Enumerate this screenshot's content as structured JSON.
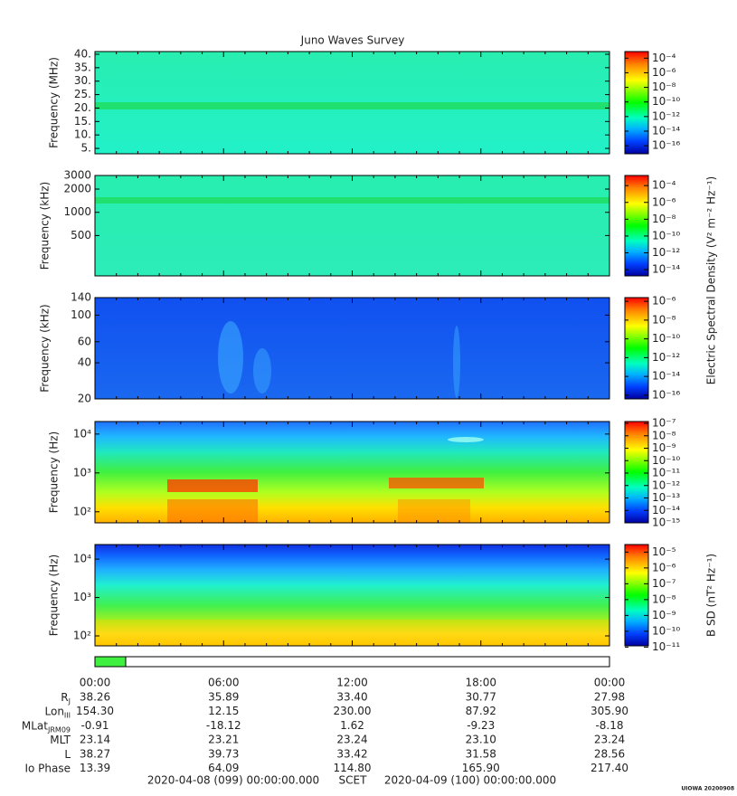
{
  "title": "Juno Waves Survey",
  "chart_data": [
    {
      "type": "spectrogram",
      "ylabel": "Frequency (MHz)",
      "log_y": false,
      "ylim": [
        3,
        41
      ],
      "yticks": [
        {
          "value": 5,
          "label": "5."
        },
        {
          "value": 10,
          "label": "10."
        },
        {
          "value": 15,
          "label": "15."
        },
        {
          "value": 20,
          "label": "20."
        },
        {
          "value": 25,
          "label": "25."
        },
        {
          "value": 30,
          "label": "30."
        },
        {
          "value": 35,
          "label": "35."
        },
        {
          "value": 40,
          "label": "40."
        }
      ],
      "colorbar": {
        "log": true,
        "clim": [
          8e-18,
          0.0008
        ],
        "ticks": [
          {
            "value": 0.0001,
            "label": "10⁻⁴"
          },
          {
            "value": 1e-06,
            "label": "10⁻⁶"
          },
          {
            "value": 1e-08,
            "label": "10⁻⁸"
          },
          {
            "value": 1e-10,
            "label": "10⁻¹⁰"
          },
          {
            "value": 1e-12,
            "label": "10⁻¹²"
          },
          {
            "value": 1e-14,
            "label": "10⁻¹⁴"
          },
          {
            "value": 1e-16,
            "label": "10⁻¹⁶"
          }
        ]
      }
    },
    {
      "type": "spectrogram",
      "ylabel": "Frequency (kHz)",
      "log_y": true,
      "ylim": [
        150,
        3000
      ],
      "yticks": [
        500,
        1000,
        2000,
        3000
      ],
      "colorbar": {
        "log": true,
        "clim": [
          1.8e-15,
          0.0016
        ],
        "ticks": [
          {
            "value": 0.0001,
            "label": "10⁻⁴"
          },
          {
            "value": 1e-06,
            "label": "10⁻⁶"
          },
          {
            "value": 1e-08,
            "label": "10⁻⁸"
          },
          {
            "value": 1e-10,
            "label": "10⁻¹⁰"
          },
          {
            "value": 1e-12,
            "label": "10⁻¹²"
          },
          {
            "value": 1e-14,
            "label": "10⁻¹⁴"
          }
        ]
      }
    },
    {
      "type": "spectrogram",
      "ylabel": "Frequency (kHz)",
      "log_y": true,
      "ylim": [
        20,
        140
      ],
      "yticks": [
        20,
        40,
        60,
        100,
        140
      ],
      "colorbar": {
        "log": true,
        "clim": [
          4e-17,
          2.5e-06
        ],
        "ticks": [
          {
            "value": 1e-06,
            "label": "10⁻⁶"
          },
          {
            "value": 1e-08,
            "label": "10⁻⁸"
          },
          {
            "value": 1e-10,
            "label": "10⁻¹⁰"
          },
          {
            "value": 1e-12,
            "label": "10⁻¹²"
          },
          {
            "value": 1e-14,
            "label": "10⁻¹⁴"
          },
          {
            "value": 1e-16,
            "label": "10⁻¹⁶"
          }
        ]
      }
    },
    {
      "type": "spectrogram",
      "ylabel": "Frequency (Hz)",
      "log_y": true,
      "ylim": [
        52,
        21000
      ],
      "yticks": [
        {
          "value": 100,
          "label": "10²"
        },
        {
          "value": 1000,
          "label": "10³"
        },
        {
          "value": 10000,
          "label": "10⁴"
        }
      ],
      "colorbar": {
        "log": true,
        "clim": [
          1e-15,
          1.4e-07
        ],
        "ticks": [
          {
            "value": 1e-07,
            "label": "10⁻⁷"
          },
          {
            "value": 1e-08,
            "label": "10⁻⁸"
          },
          {
            "value": 1e-09,
            "label": "10⁻⁹"
          },
          {
            "value": 1e-10,
            "label": "10⁻¹⁰"
          },
          {
            "value": 1e-11,
            "label": "10⁻¹¹"
          },
          {
            "value": 1e-12,
            "label": "10⁻¹²"
          },
          {
            "value": 1e-13,
            "label": "10⁻¹³"
          },
          {
            "value": 1e-14,
            "label": "10⁻¹⁴"
          },
          {
            "value": 1e-15,
            "label": "10⁻¹⁵"
          }
        ]
      }
    },
    {
      "type": "spectrogram",
      "ylabel": "Frequency (Hz)",
      "log_y": true,
      "ylim": [
        55,
        24000
      ],
      "yticks": [
        {
          "value": 100,
          "label": "10²"
        },
        {
          "value": 1000,
          "label": "10³"
        },
        {
          "value": 10000,
          "label": "10⁴"
        }
      ],
      "colorbar": {
        "log": true,
        "clim": [
          1.2e-11,
          3e-05
        ],
        "ticks": [
          {
            "value": 1e-05,
            "label": "10⁻⁵"
          },
          {
            "value": 1e-06,
            "label": "10⁻⁶"
          },
          {
            "value": 1e-07,
            "label": "10⁻⁷"
          },
          {
            "value": 1e-08,
            "label": "10⁻⁸"
          },
          {
            "value": 1e-09,
            "label": "10⁻⁹"
          },
          {
            "value": 1e-10,
            "label": "10⁻¹⁰"
          },
          {
            "value": 1e-11,
            "label": "10⁻¹¹"
          }
        ]
      }
    }
  ],
  "colorbar_labels": [
    "Electric Spectral Density (V² m⁻² Hz⁻¹)",
    "B SD (nT² Hz⁻¹)"
  ],
  "time_ticks": [
    "00:00",
    "06:00",
    "12:00",
    "18:00",
    "00:00"
  ],
  "ephemeris": [
    {
      "label": "R",
      "sub": "J",
      "values": [
        "38.26",
        "35.89",
        "33.40",
        "30.77",
        "27.98"
      ]
    },
    {
      "label": "Lon",
      "sub": "III",
      "values": [
        "154.30",
        "12.15",
        "230.00",
        "87.92",
        "305.90"
      ]
    },
    {
      "label": "MLat",
      "sub": "JRM09",
      "values": [
        "-0.91",
        "-18.12",
        "1.62",
        "-9.23",
        "-8.18"
      ]
    },
    {
      "label": "MLT",
      "values": [
        "23.14",
        "23.21",
        "23.24",
        "23.10",
        "23.24"
      ]
    },
    {
      "label": "L",
      "values": [
        "38.27",
        "39.73",
        "33.42",
        "31.58",
        "28.56"
      ]
    },
    {
      "label": "Io Phase",
      "values": [
        "13.39",
        "64.09",
        "114.80",
        "165.90",
        "217.40"
      ]
    }
  ],
  "footer": {
    "start": "2020-04-08 (099) 00:00:00.000",
    "scet": "SCET",
    "end": "2020-04-09 (100) 00:00:00.000"
  },
  "credit": "UIOWA 20200908"
}
